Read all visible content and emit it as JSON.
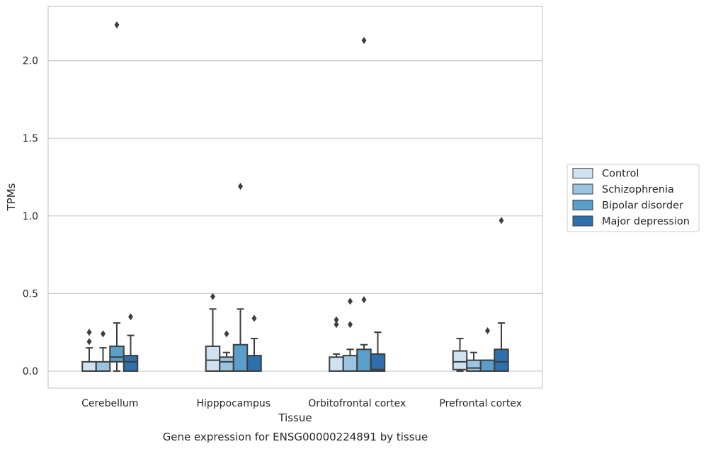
{
  "chart_data": {
    "type": "boxplot",
    "caption": "Gene expression for ENSG00000224891 by tissue",
    "xlabel": "Tissue",
    "ylabel": "TPMs",
    "ylim": [
      -0.11,
      2.35
    ],
    "yticks": [
      "0.0",
      "0.5",
      "1.0",
      "1.5",
      "2.0"
    ],
    "grid": "horizontal",
    "legend_position": "right",
    "categories": [
      "Cerebellum",
      "Hipppocampus",
      "Orbitofrontal cortex",
      "Prefrontal cortex"
    ],
    "series": [
      {
        "name": "Control",
        "color": "#d0e1f2",
        "boxes": [
          {
            "q1": 0.0,
            "median": 0.0,
            "q3": 0.06,
            "whisker_low": 0.0,
            "whisker_high": 0.15,
            "outliers": [
              0.19,
              0.25
            ]
          },
          {
            "q1": 0.0,
            "median": 0.07,
            "q3": 0.16,
            "whisker_low": 0.0,
            "whisker_high": 0.4,
            "outliers": [
              0.48
            ]
          },
          {
            "q1": 0.0,
            "median": 0.0,
            "q3": 0.09,
            "whisker_low": 0.0,
            "whisker_high": 0.11,
            "outliers": [
              0.3,
              0.33
            ]
          },
          {
            "q1": 0.01,
            "median": 0.06,
            "q3": 0.13,
            "whisker_low": 0.0,
            "whisker_high": 0.21,
            "outliers": []
          }
        ]
      },
      {
        "name": "Schizophrenia",
        "color": "#9ac4e0",
        "boxes": [
          {
            "q1": 0.0,
            "median": 0.0,
            "q3": 0.06,
            "whisker_low": 0.0,
            "whisker_high": 0.15,
            "outliers": [
              0.24
            ]
          },
          {
            "q1": 0.0,
            "median": 0.06,
            "q3": 0.09,
            "whisker_low": 0.0,
            "whisker_high": 0.12,
            "outliers": [
              0.24
            ]
          },
          {
            "q1": 0.0,
            "median": 0.0,
            "q3": 0.1,
            "whisker_low": 0.0,
            "whisker_high": 0.14,
            "outliers": [
              0.3,
              0.45
            ]
          },
          {
            "q1": 0.0,
            "median": 0.02,
            "q3": 0.07,
            "whisker_low": 0.0,
            "whisker_high": 0.12,
            "outliers": []
          }
        ]
      },
      {
        "name": "Bipolar disorder",
        "color": "#5b9ec9",
        "boxes": [
          {
            "q1": 0.06,
            "median": 0.09,
            "q3": 0.16,
            "whisker_low": 0.0,
            "whisker_high": 0.31,
            "outliers": [
              2.23
            ]
          },
          {
            "q1": 0.0,
            "median": 0.0,
            "q3": 0.17,
            "whisker_low": 0.0,
            "whisker_high": 0.4,
            "outliers": [
              1.19
            ]
          },
          {
            "q1": 0.0,
            "median": 0.0,
            "q3": 0.14,
            "whisker_low": 0.0,
            "whisker_high": 0.17,
            "outliers": [
              0.46,
              2.13
            ]
          },
          {
            "q1": 0.0,
            "median": 0.0,
            "q3": 0.07,
            "whisker_low": 0.0,
            "whisker_high": 0.07,
            "outliers": [
              0.26
            ]
          }
        ]
      },
      {
        "name": "Major depression",
        "color": "#2e6fad",
        "boxes": [
          {
            "q1": 0.0,
            "median": 0.06,
            "q3": 0.1,
            "whisker_low": 0.0,
            "whisker_high": 0.23,
            "outliers": [
              0.35
            ]
          },
          {
            "q1": 0.0,
            "median": 0.0,
            "q3": 0.1,
            "whisker_low": 0.0,
            "whisker_high": 0.21,
            "outliers": [
              0.34
            ]
          },
          {
            "q1": 0.0,
            "median": 0.01,
            "q3": 0.11,
            "whisker_low": 0.0,
            "whisker_high": 0.25,
            "outliers": []
          },
          {
            "q1": 0.0,
            "median": 0.06,
            "q3": 0.14,
            "whisker_low": 0.0,
            "whisker_high": 0.31,
            "outliers": [
              0.97
            ]
          }
        ]
      }
    ]
  }
}
